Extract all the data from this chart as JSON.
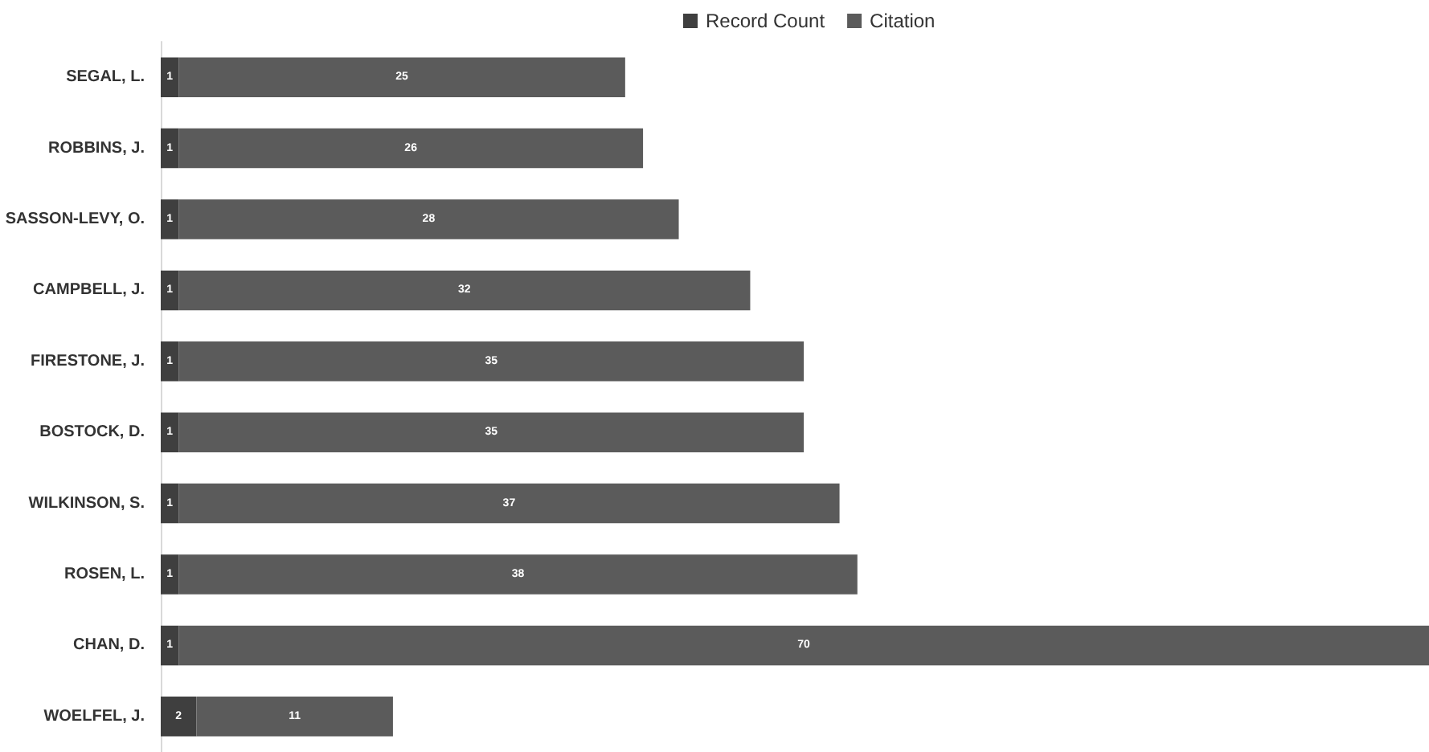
{
  "chart_data": {
    "type": "bar",
    "orientation": "horizontal",
    "stacked": true,
    "data_labels": true,
    "legend": "top",
    "tick_labels": "y",
    "categories": [
      "SEGAL, L.",
      "ROBBINS, J.",
      "SASSON-LEVY, O.",
      "CAMPBELL, J.",
      "FIRESTONE, J.",
      "BOSTOCK, D.",
      "WILKINSON, S.",
      "ROSEN, L.",
      "CHAN, D.",
      "WOELFEL, J."
    ],
    "series": [
      {
        "name": "Record Count",
        "color": "#3f3f3f",
        "values": [
          1,
          1,
          1,
          1,
          1,
          1,
          1,
          1,
          1,
          2
        ]
      },
      {
        "name": "Citation",
        "color": "#5b5b5b",
        "values": [
          25,
          26,
          28,
          32,
          35,
          35,
          37,
          38,
          70,
          11
        ]
      }
    ]
  }
}
